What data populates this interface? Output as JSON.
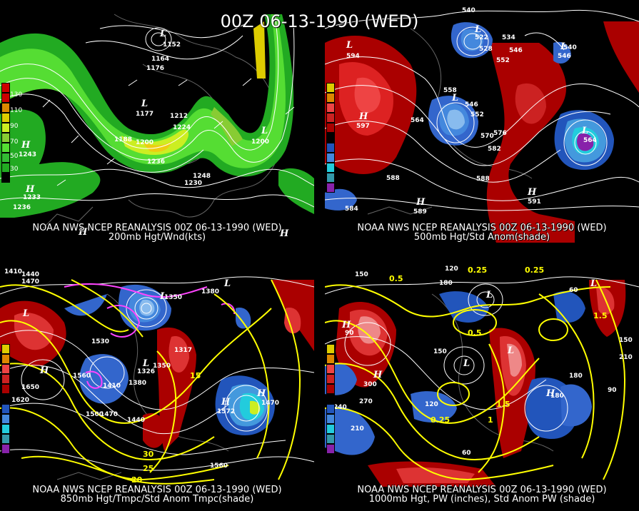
{
  "title": "00Z 06-13-1990 (WED)",
  "colors": {
    "yellow": "#ffff00",
    "magenta": "#ff44ff",
    "white": "#ffffff",
    "green_light": "#66ff33",
    "green_mid": "#33cc33",
    "green_dark": "#22aa22",
    "warm": "#cc0000",
    "cool": "#3366cc"
  },
  "panels": [
    {
      "id": "wind200",
      "caption_line1": "NOAA NWS NCEP REANALYSIS 00Z 06-13-1990 (WED)",
      "caption_line2": "200mb Hgt/Wnd(kts)",
      "legend": [
        "130",
        "110",
        "90",
        "70",
        "50",
        "30"
      ],
      "contour_labels": [
        "1152",
        "1164",
        "1176",
        "1177",
        "1188",
        "1200",
        "1212",
        "1224",
        "1236",
        "1243",
        "1233",
        "1236",
        "1230",
        "1200",
        "1248"
      ],
      "centers": [
        "L",
        "L",
        "H",
        "H",
        "L",
        "H",
        "H"
      ]
    },
    {
      "id": "hgt500",
      "caption_line1": "NOAA NWS NCEP REANALYSIS 00Z 06-13-1990 (WED)",
      "caption_line2": "500mb Hgt/Std Anom(shade)",
      "legend": [
        "5",
        "4",
        "3",
        "2",
        "1",
        "0",
        "1",
        "2",
        "3",
        "4",
        "5"
      ],
      "contour_labels": [
        "540",
        "522",
        "528",
        "534",
        "546",
        "540",
        "552",
        "558",
        "546",
        "552",
        "564",
        "570",
        "576",
        "582",
        "588",
        "588",
        "597",
        "564",
        "591",
        "589",
        "584",
        "594",
        "546"
      ],
      "centers": [
        "L",
        "L",
        "L",
        "H",
        "L",
        "H",
        "H",
        "L"
      ]
    },
    {
      "id": "hgt850",
      "caption_line1": "NOAA NWS NCEP REANALYSIS 00Z 06-13-1990 (WED)",
      "caption_line2": "850mb Hgt/Tmpc/Std Anom Tmpc(shade)",
      "legend": [
        "5",
        "4",
        "3",
        "2",
        "1",
        "0",
        "1",
        "2",
        "3",
        "4",
        "5"
      ],
      "contour_labels": [
        "1410",
        "1440",
        "1470",
        "1350",
        "1380",
        "1530",
        "1560",
        "1650",
        "1620",
        "1410",
        "1380",
        "1350",
        "1317",
        "1326",
        "1500",
        "1470",
        "1440",
        "1560",
        "1572",
        "1470",
        "30",
        "25",
        "20",
        "15"
      ],
      "centers": [
        "L",
        "L",
        "H",
        "L",
        "H",
        "H",
        "L"
      ]
    },
    {
      "id": "pw1000",
      "caption_line1": "NOAA NWS NCEP REANALYSIS 00Z 06-13-1990 (WED)",
      "caption_line2": "1000mb Hgt, PW (inches), Std Anom PW (shade)",
      "legend": [
        "5",
        "4",
        "3",
        "2",
        "1",
        "0",
        "1",
        "2",
        "3",
        "4",
        "5"
      ],
      "contour_labels": [
        "120",
        "150",
        "180",
        "0.5",
        "0.25",
        "90",
        "150",
        "210",
        "240",
        "270",
        "300",
        "120",
        "60",
        "1.5",
        "1",
        "0.25",
        "180",
        "150",
        "210",
        "90",
        "60",
        "180",
        "0.25",
        "0.5",
        "1.5"
      ],
      "centers": [
        "L",
        "H",
        "L",
        "H",
        "L",
        "H",
        "L"
      ]
    }
  ]
}
